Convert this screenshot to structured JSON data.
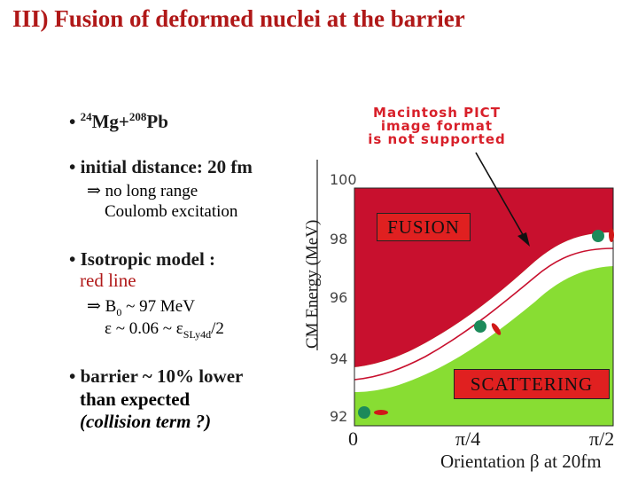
{
  "title": "III) Fusion of deformed nuclei at the barrier",
  "bullets": {
    "b1": {
      "marker": "•",
      "a": "24",
      "b": "Mg+",
      "c": "208",
      "d": "Pb"
    },
    "b2": {
      "main": "• initial distance: 20 fm",
      "sub1": "⇒ no long range",
      "sub2": "Coulomb excitation"
    },
    "b3": {
      "main": "• Isotropic model :",
      "sub0": "red line",
      "sub1_pre": "⇒  B",
      "sub1_idx": "0",
      "sub1_post": " ~ 97 MeV",
      "sub2_pre": "ε ~ 0.06 ~ ε",
      "sub2_idx": "SLy4d",
      "sub2_post": "/2"
    },
    "b4": {
      "main": "• barrier ~ 10% lower",
      "sub1": "than expected",
      "sub2": "(collision term ?)"
    }
  },
  "pict_notice": {
    "line1": "Macintosh PICT",
    "line2": "image format",
    "line3": "is not supported"
  },
  "figure": {
    "ylabel": "CM Energy (MeV)",
    "yticks": [
      "100",
      "98",
      "96",
      "94",
      "92"
    ],
    "xticks": [
      "0",
      "π/4",
      "π/2"
    ],
    "xlabel": "Orientation β at 20fm",
    "region_fusion": "FUSION",
    "region_scattering": "SCATTERING",
    "colors": {
      "fusion": "#c8102e",
      "scattering": "#88dd33",
      "barrier_band": "#ffffff",
      "curve": "#c8102e"
    }
  }
}
